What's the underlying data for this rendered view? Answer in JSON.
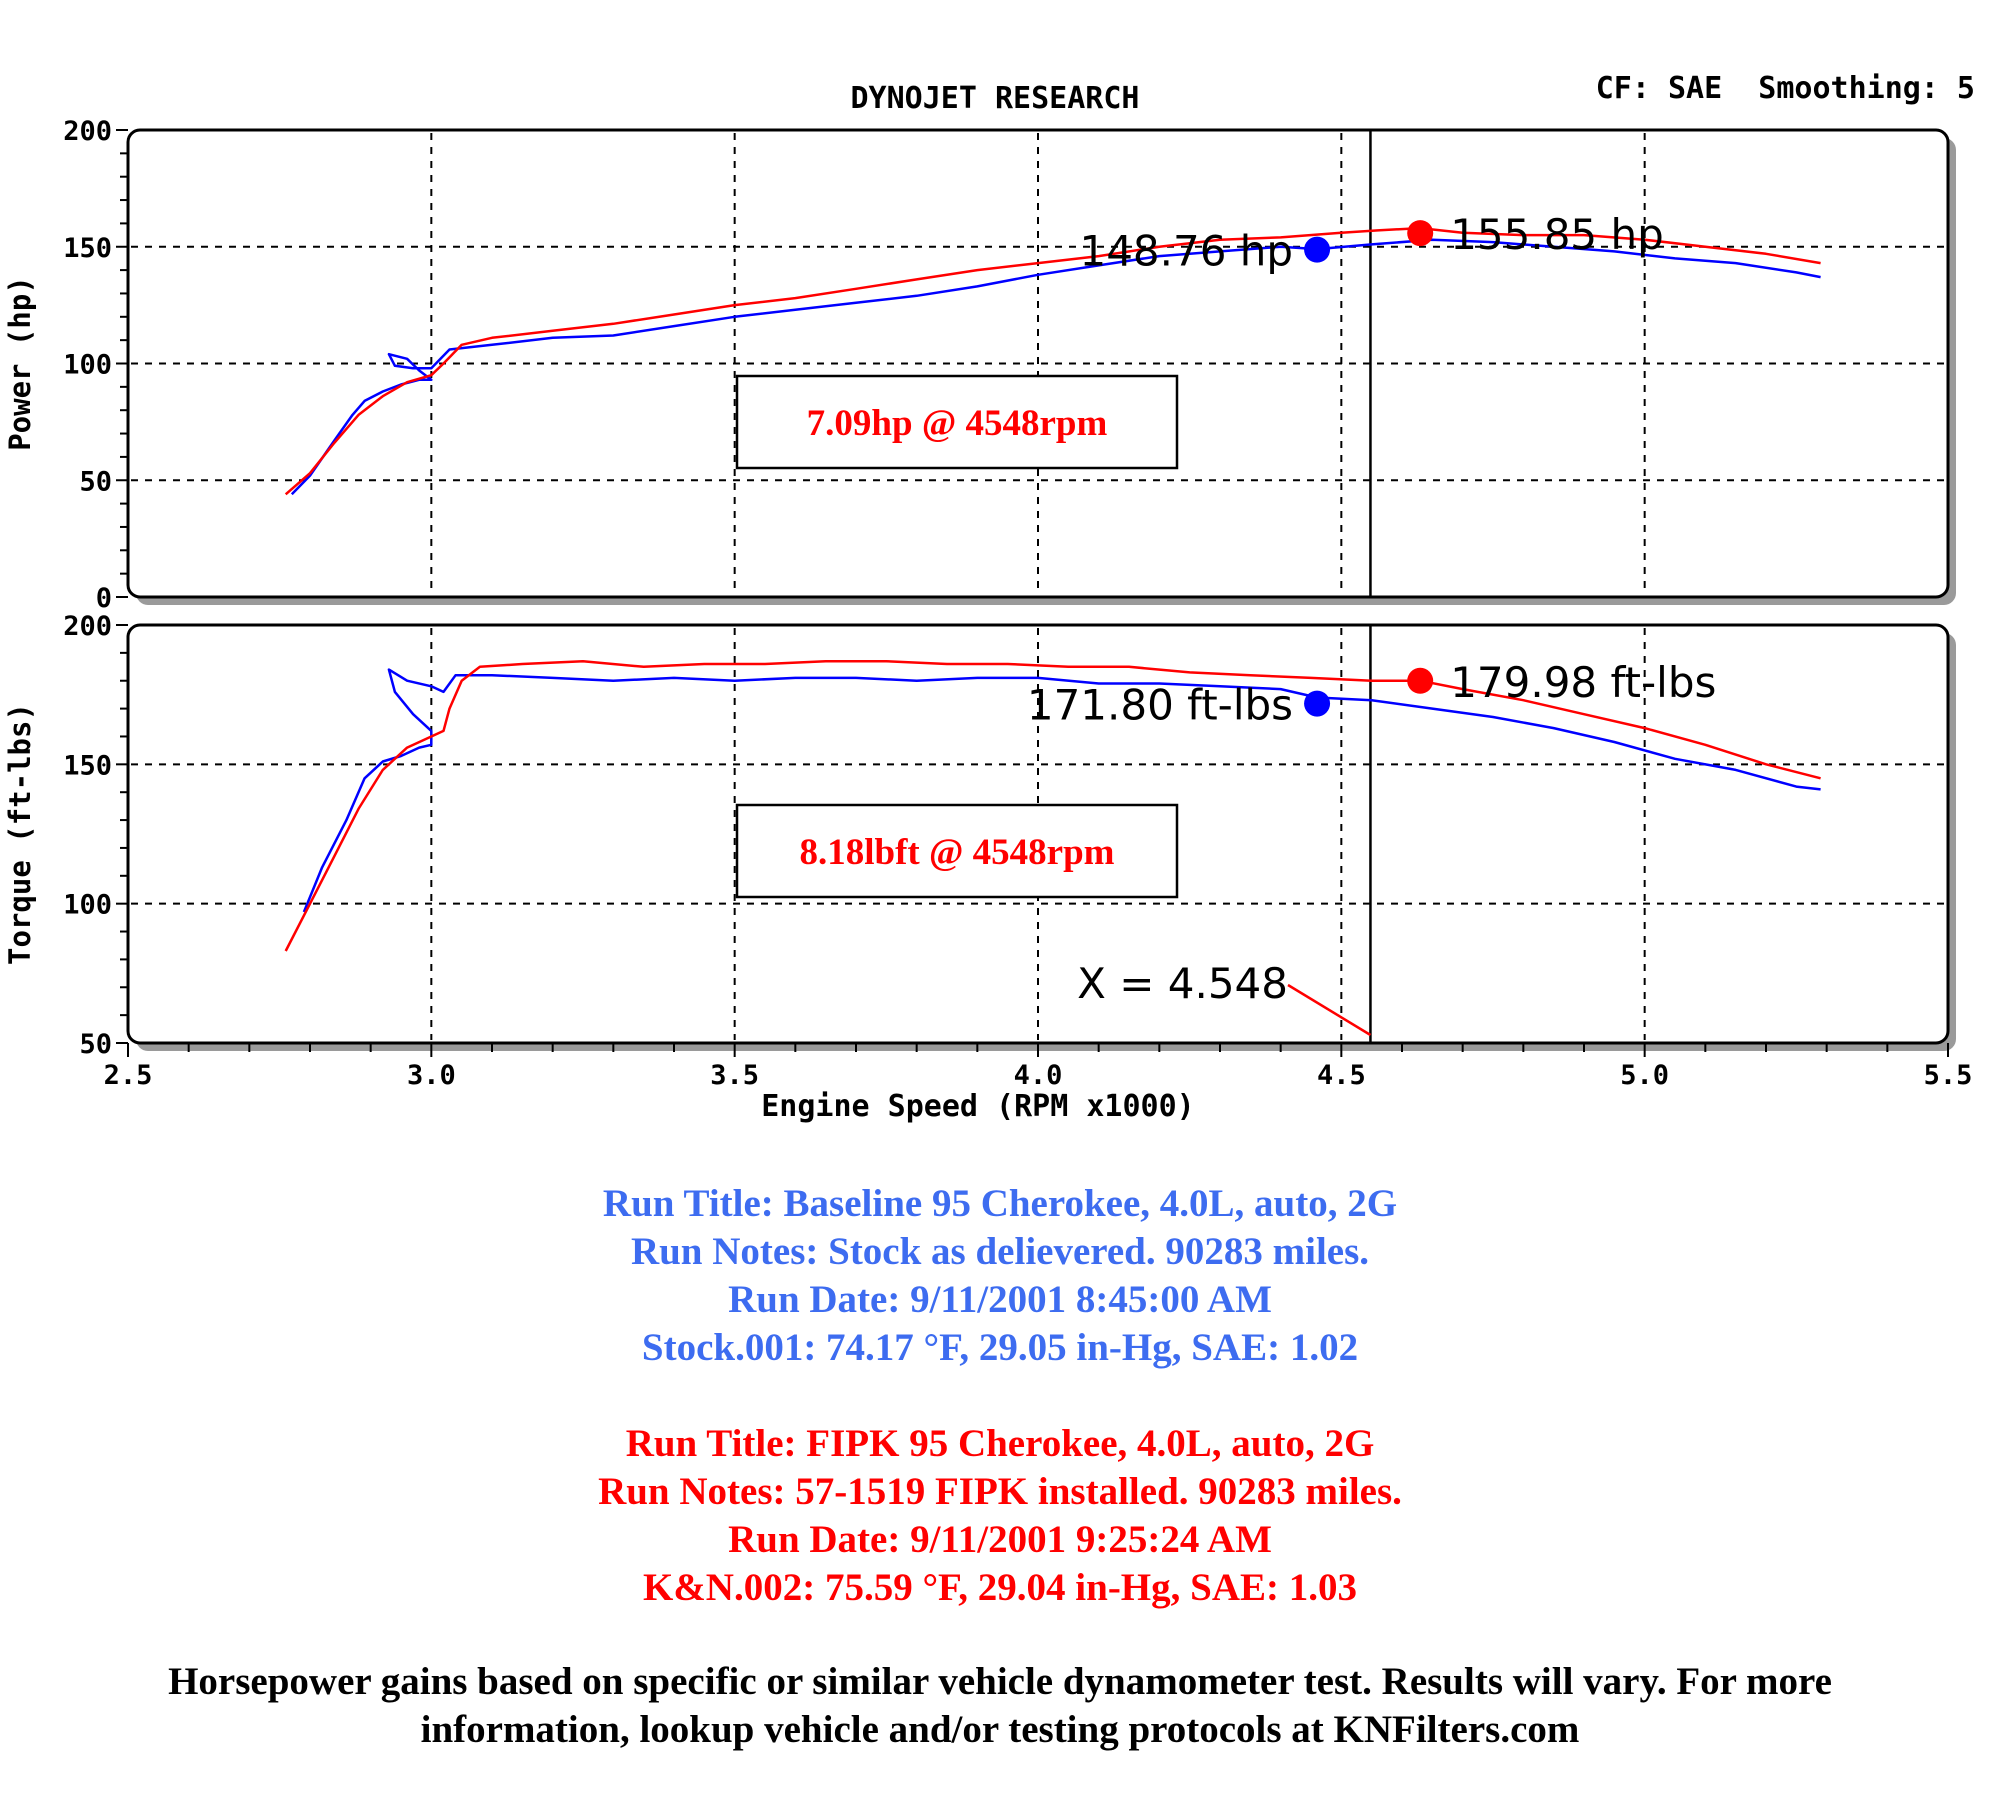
{
  "header": {
    "title": "DYNOJET RESEARCH",
    "settings": "CF: SAE  Smoothing: 5"
  },
  "colors": {
    "baseline": "#0000ff",
    "fipk": "#ff0000",
    "baseline_text": "#3d6cf0"
  },
  "chart_data": [
    {
      "type": "line",
      "ylabel": "Power (hp)",
      "ylim": [
        0,
        200
      ],
      "yticks": [
        "0",
        "50",
        "100",
        "150",
        "200"
      ],
      "xlim": [
        2.5,
        5.5
      ],
      "series": [
        {
          "color": "#0000ff",
          "points": [
            [
              2.77,
              44
            ],
            [
              2.8,
              52
            ],
            [
              2.84,
              67
            ],
            [
              2.87,
              78
            ],
            [
              2.89,
              84
            ],
            [
              2.92,
              88
            ],
            [
              2.95,
              91
            ],
            [
              2.98,
              93
            ],
            [
              3.0,
              93
            ],
            [
              2.98,
              97
            ],
            [
              2.96,
              102
            ],
            [
              2.93,
              104
            ],
            [
              2.94,
              99
            ],
            [
              2.97,
              98
            ],
            [
              3.0,
              98
            ],
            [
              3.03,
              106
            ],
            [
              3.1,
              108
            ],
            [
              3.2,
              111
            ],
            [
              3.3,
              112
            ],
            [
              3.4,
              116
            ],
            [
              3.5,
              120
            ],
            [
              3.6,
              123
            ],
            [
              3.7,
              126
            ],
            [
              3.8,
              129
            ],
            [
              3.9,
              133
            ],
            [
              4.0,
              138
            ],
            [
              4.1,
              142
            ],
            [
              4.2,
              146
            ],
            [
              4.3,
              148
            ],
            [
              4.4,
              150
            ],
            [
              4.46,
              149
            ],
            [
              4.55,
              151
            ],
            [
              4.65,
              153
            ],
            [
              4.75,
              152
            ],
            [
              4.85,
              150
            ],
            [
              4.95,
              148
            ],
            [
              5.05,
              145
            ],
            [
              5.15,
              143
            ],
            [
              5.25,
              139
            ],
            [
              5.29,
              137
            ]
          ]
        },
        {
          "color": "#ff0000",
          "points": [
            [
              2.76,
              44
            ],
            [
              2.8,
              53
            ],
            [
              2.84,
              66
            ],
            [
              2.88,
              78
            ],
            [
              2.92,
              86
            ],
            [
              2.96,
              92
            ],
            [
              3.0,
              95
            ],
            [
              3.02,
              100
            ],
            [
              3.05,
              108
            ],
            [
              3.1,
              111
            ],
            [
              3.2,
              114
            ],
            [
              3.3,
              117
            ],
            [
              3.4,
              121
            ],
            [
              3.5,
              125
            ],
            [
              3.6,
              128
            ],
            [
              3.7,
              132
            ],
            [
              3.8,
              136
            ],
            [
              3.9,
              140
            ],
            [
              4.0,
              143
            ],
            [
              4.1,
              146
            ],
            [
              4.2,
              150
            ],
            [
              4.3,
              153
            ],
            [
              4.4,
              154
            ],
            [
              4.5,
              156
            ],
            [
              4.56,
              157
            ],
            [
              4.63,
              158
            ],
            [
              4.7,
              156
            ],
            [
              4.8,
              155
            ],
            [
              4.9,
              155
            ],
            [
              5.0,
              153
            ],
            [
              5.1,
              150
            ],
            [
              5.2,
              147
            ],
            [
              5.29,
              143
            ]
          ]
        }
      ],
      "markers": [
        {
          "x": 4.46,
          "y": 148.76,
          "color": "#0000ff",
          "label": "148.76 hp"
        },
        {
          "x": 4.63,
          "y": 155.85,
          "color": "#ff0000",
          "label": "155.85 hp"
        }
      ],
      "annotation": "7.09hp @ 4548rpm"
    },
    {
      "type": "line",
      "ylabel": "Torque (ft-lbs)",
      "ylim": [
        50,
        200
      ],
      "yticks": [
        "50",
        "100",
        "150",
        "200"
      ],
      "xlim": [
        2.5,
        5.5
      ],
      "xlabel": "Engine Speed (RPM x1000)",
      "xticks": [
        "2.5",
        "3.0",
        "3.5",
        "4.0",
        "4.5",
        "5.0",
        "5.5"
      ],
      "series": [
        {
          "color": "#0000ff",
          "points": [
            [
              2.79,
              97
            ],
            [
              2.82,
              113
            ],
            [
              2.86,
              130
            ],
            [
              2.89,
              145
            ],
            [
              2.92,
              151
            ],
            [
              2.95,
              153
            ],
            [
              2.98,
              156
            ],
            [
              3.0,
              157
            ],
            [
              3.0,
              162
            ],
            [
              2.97,
              168
            ],
            [
              2.94,
              176
            ],
            [
              2.93,
              184
            ],
            [
              2.96,
              180
            ],
            [
              3.0,
              178
            ],
            [
              3.02,
              176
            ],
            [
              3.04,
              182
            ],
            [
              3.1,
              182
            ],
            [
              3.2,
              181
            ],
            [
              3.3,
              180
            ],
            [
              3.4,
              181
            ],
            [
              3.5,
              180
            ],
            [
              3.6,
              181
            ],
            [
              3.7,
              181
            ],
            [
              3.8,
              180
            ],
            [
              3.9,
              181
            ],
            [
              4.0,
              181
            ],
            [
              4.1,
              179
            ],
            [
              4.2,
              179
            ],
            [
              4.3,
              178
            ],
            [
              4.4,
              177
            ],
            [
              4.46,
              174
            ],
            [
              4.55,
              173
            ],
            [
              4.65,
              170
            ],
            [
              4.75,
              167
            ],
            [
              4.85,
              163
            ],
            [
              4.95,
              158
            ],
            [
              5.05,
              152
            ],
            [
              5.15,
              148
            ],
            [
              5.25,
              142
            ],
            [
              5.29,
              141
            ]
          ]
        },
        {
          "color": "#ff0000",
          "points": [
            [
              2.76,
              83
            ],
            [
              2.8,
              100
            ],
            [
              2.84,
              117
            ],
            [
              2.88,
              134
            ],
            [
              2.92,
              148
            ],
            [
              2.96,
              156
            ],
            [
              3.0,
              160
            ],
            [
              3.02,
              162
            ],
            [
              3.03,
              170
            ],
            [
              3.05,
              180
            ],
            [
              3.08,
              185
            ],
            [
              3.15,
              186
            ],
            [
              3.25,
              187
            ],
            [
              3.35,
              185
            ],
            [
              3.45,
              186
            ],
            [
              3.55,
              186
            ],
            [
              3.65,
              187
            ],
            [
              3.75,
              187
            ],
            [
              3.85,
              186
            ],
            [
              3.95,
              186
            ],
            [
              4.05,
              185
            ],
            [
              4.15,
              185
            ],
            [
              4.25,
              183
            ],
            [
              4.35,
              182
            ],
            [
              4.45,
              181
            ],
            [
              4.55,
              180
            ],
            [
              4.63,
              180
            ],
            [
              4.7,
              177
            ],
            [
              4.8,
              173
            ],
            [
              4.9,
              168
            ],
            [
              5.0,
              163
            ],
            [
              5.1,
              157
            ],
            [
              5.2,
              150
            ],
            [
              5.29,
              145
            ]
          ]
        }
      ],
      "markers": [
        {
          "x": 4.46,
          "y": 171.8,
          "color": "#0000ff",
          "label": "171.80 ft-lbs"
        },
        {
          "x": 4.63,
          "y": 179.98,
          "color": "#ff0000",
          "label": "179.98 ft-lbs"
        }
      ],
      "annotation": "8.18lbft @ 4548rpm",
      "cursor_label": "X = 4.548",
      "cursor_x": 4.548
    }
  ],
  "runs": {
    "baseline": [
      "Run Title: Baseline 95 Cherokee, 4.0L, auto, 2G",
      "Run Notes: Stock as delievered. 90283 miles.",
      "Run Date: 9/11/2001 8:45:00 AM",
      "Stock.001: 74.17 °F, 29.05 in-Hg, SAE: 1.02"
    ],
    "fipk": [
      "Run Title: FIPK 95 Cherokee, 4.0L, auto, 2G",
      "Run Notes: 57-1519 FIPK installed. 90283 miles.",
      "Run Date: 9/11/2001 9:25:24 AM",
      "K&N.002: 75.59 °F, 29.04 in-Hg, SAE: 1.03"
    ]
  },
  "disclaimer": "Horsepower gains based on specific or similar vehicle dynamometer test. Results will vary. For more information, lookup vehicle and/or testing protocols at KNFilters.com"
}
